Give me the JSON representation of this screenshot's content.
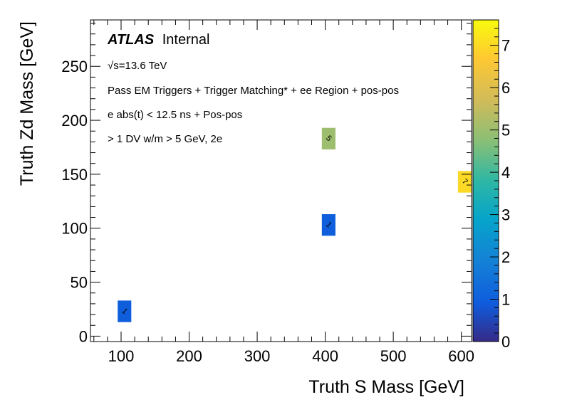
{
  "chart_data": {
    "type": "heatmap",
    "xlabel": "Truth S Mass [GeV]",
    "ylabel": "Truth Zd Mass [GeV]",
    "xlim": [
      55,
      615
    ],
    "ylim": [
      -5,
      293
    ],
    "x_major_ticks": [
      100,
      200,
      300,
      400,
      500,
      600
    ],
    "y_major_ticks": [
      0,
      50,
      100,
      150,
      200,
      250
    ],
    "x_tick_labels": [
      "100",
      "200",
      "300",
      "400",
      "500",
      "600"
    ],
    "y_tick_labels": [
      "0",
      "50",
      "100",
      "150",
      "200",
      "250"
    ],
    "z_range": [
      0,
      7.6
    ],
    "z_major_ticks": [
      0,
      1,
      2,
      3,
      4,
      5,
      6,
      7
    ],
    "z_tick_labels": [
      "0",
      "1",
      "2",
      "3",
      "4",
      "5",
      "6",
      "7"
    ],
    "bin_width": 20,
    "bin_height": 20,
    "cells": [
      {
        "x": 105,
        "y": 23,
        "value": 1,
        "label": "1"
      },
      {
        "x": 405,
        "y": 103,
        "value": 1,
        "label": "1"
      },
      {
        "x": 405,
        "y": 183,
        "value": 5,
        "label": "5"
      },
      {
        "x": 605,
        "y": 143,
        "value": 7,
        "label": "7"
      }
    ],
    "annotations": {
      "atlas": "ATLAS",
      "atlas_suffix": "Internal",
      "sqrt_s": "√s=13.6 TeV",
      "line1": "Pass EM Triggers + Trigger Matching* + ee Region + pos-pos",
      "line2": "e abs(t) < 12.5 ns + Pos-pos",
      "line3": "> 1 DV w/m > 5 GeV, 2e"
    }
  }
}
